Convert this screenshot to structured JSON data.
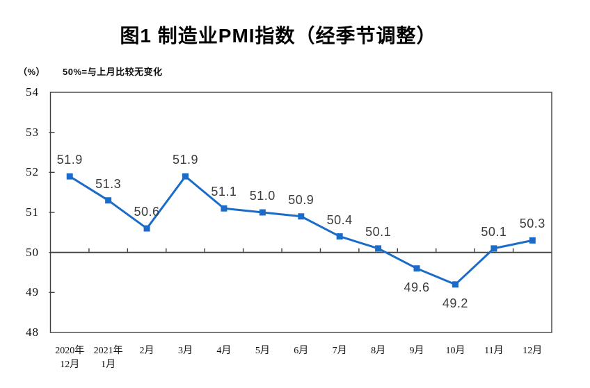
{
  "header": {
    "title": "图1 制造业PMI指数（经季节调整）",
    "unit_label": "（%）",
    "reference_note": "50%=与上月比较无变化"
  },
  "chart_data": {
    "type": "line",
    "title": "图1 制造业PMI指数（经季节调整）",
    "ylabel": "（%）",
    "annotation": "50%=与上月比较无变化",
    "categories": [
      [
        "2020年",
        "12月"
      ],
      [
        "2021年",
        "1月"
      ],
      [
        "2月"
      ],
      [
        "3月"
      ],
      [
        "4月"
      ],
      [
        "5月"
      ],
      [
        "6月"
      ],
      [
        "7月"
      ],
      [
        "8月"
      ],
      [
        "9月"
      ],
      [
        "10月"
      ],
      [
        "11月"
      ],
      [
        "12月"
      ]
    ],
    "values": [
      51.9,
      51.3,
      50.6,
      51.9,
      51.1,
      51.0,
      50.9,
      50.4,
      50.1,
      49.6,
      49.2,
      50.1,
      50.3
    ],
    "data_labels": [
      "51.9",
      "51.3",
      "50.6",
      "51.9",
      "51.1",
      "51.0",
      "50.9",
      "50.4",
      "50.1",
      "49.6",
      "49.2",
      "50.1",
      "50.3"
    ],
    "data_label_positions": [
      "above",
      "above",
      "above",
      "above",
      "above",
      "above",
      "above",
      "above",
      "above",
      "below",
      "below",
      "above",
      "above"
    ],
    "ylim": [
      48,
      54
    ],
    "ytick_step": 1,
    "ytick_labels": [
      "48",
      "49",
      "50",
      "51",
      "52",
      "53",
      "54"
    ],
    "reference_line_y": 50,
    "grid": "off",
    "legend": "none",
    "marker": "square",
    "colors": {
      "line": "#1a6cc8",
      "marker": "#1a6cc8",
      "axis": "#404040",
      "tick_text": "#111111",
      "data_label_text": "#3c3c3c"
    }
  }
}
